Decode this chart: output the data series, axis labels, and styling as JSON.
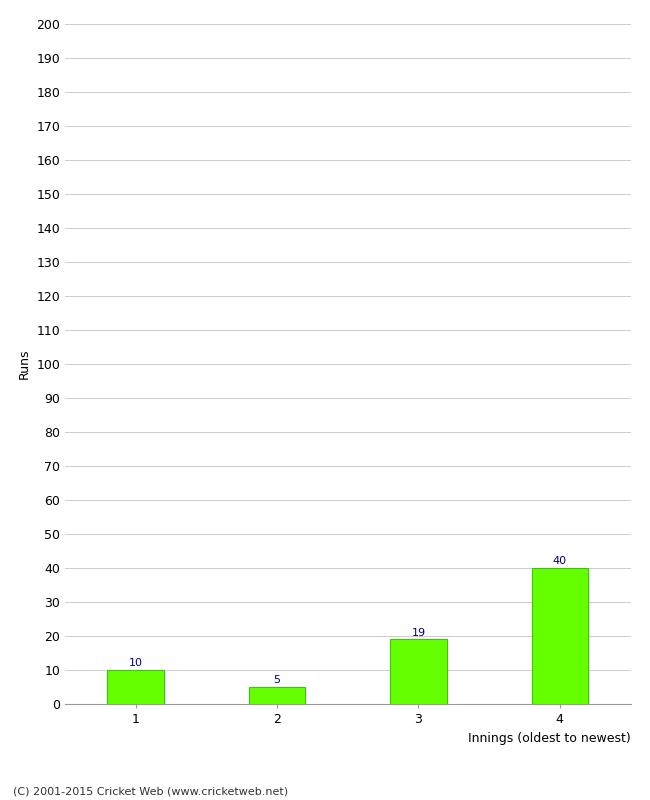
{
  "categories": [
    "1",
    "2",
    "3",
    "4"
  ],
  "values": [
    10,
    5,
    19,
    40
  ],
  "bar_color": "#66ff00",
  "bar_edge_color": "#33cc00",
  "label_color": "#000080",
  "xlabel": "Innings (oldest to newest)",
  "ylabel": "Runs",
  "ylim": [
    0,
    200
  ],
  "ytick_step": 10,
  "background_color": "#ffffff",
  "grid_color": "#cccccc",
  "footer": "(C) 2001-2015 Cricket Web (www.cricketweb.net)"
}
